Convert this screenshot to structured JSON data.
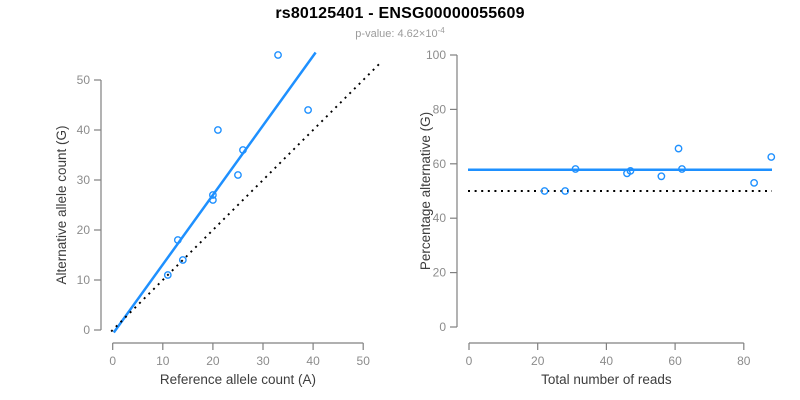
{
  "header": {
    "title": "rs80125401 - ENSG00000055609",
    "p_label": "p-value: 4.62×10",
    "p_exponent": "-4"
  },
  "colors": {
    "accent_blue": "#1E90FF",
    "dashed_line_black": "#000000",
    "axis_gray": "#808080",
    "tick_label_gray": "#8C8C8C",
    "axis_title_color": "#3D3D3D",
    "title_color": "#000000",
    "subtitle_gray": "#9B9B9B",
    "background": "#FFFFFF"
  },
  "chart_data": [
    {
      "type": "scatter",
      "title": "",
      "xlabel": "Reference allele count (A)",
      "ylabel": "Alternative allele count (G)",
      "xlim": [
        0,
        53
      ],
      "ylim": [
        0,
        56
      ],
      "xticks": [
        0,
        10,
        20,
        30,
        40,
        50
      ],
      "yticks": [
        0,
        10,
        20,
        30,
        40,
        50
      ],
      "grid": false,
      "legend": "none",
      "points": [
        [
          11,
          11
        ],
        [
          14,
          14
        ],
        [
          13,
          18
        ],
        [
          20,
          26
        ],
        [
          20,
          27
        ],
        [
          25,
          31
        ],
        [
          26,
          36
        ],
        [
          21,
          40
        ],
        [
          39,
          44
        ],
        [
          33,
          55
        ]
      ],
      "lines": [
        {
          "style": "solid",
          "slope": 1.39,
          "intercept": -0.8
        },
        {
          "style": "dotted",
          "slope": 1,
          "intercept": 0
        }
      ]
    },
    {
      "type": "scatter",
      "title": "",
      "xlabel": "Total number of reads",
      "ylabel": "Percentage alternative (G)",
      "xlim": [
        0,
        88
      ],
      "ylim": [
        0,
        100
      ],
      "xticks": [
        0,
        20,
        40,
        60,
        80
      ],
      "yticks": [
        0,
        20,
        40,
        60,
        80,
        100
      ],
      "grid": false,
      "legend": "none",
      "points": [
        [
          22,
          50
        ],
        [
          28,
          50
        ],
        [
          31,
          58.1
        ],
        [
          46,
          56.5
        ],
        [
          47,
          57.4
        ],
        [
          56,
          55.4
        ],
        [
          61,
          65.6
        ],
        [
          62,
          58.1
        ],
        [
          83,
          53
        ],
        [
          88,
          62.5
        ]
      ],
      "lines": [
        {
          "style": "solid",
          "y": 57.8
        },
        {
          "style": "dotted",
          "y": 50
        }
      ]
    }
  ]
}
